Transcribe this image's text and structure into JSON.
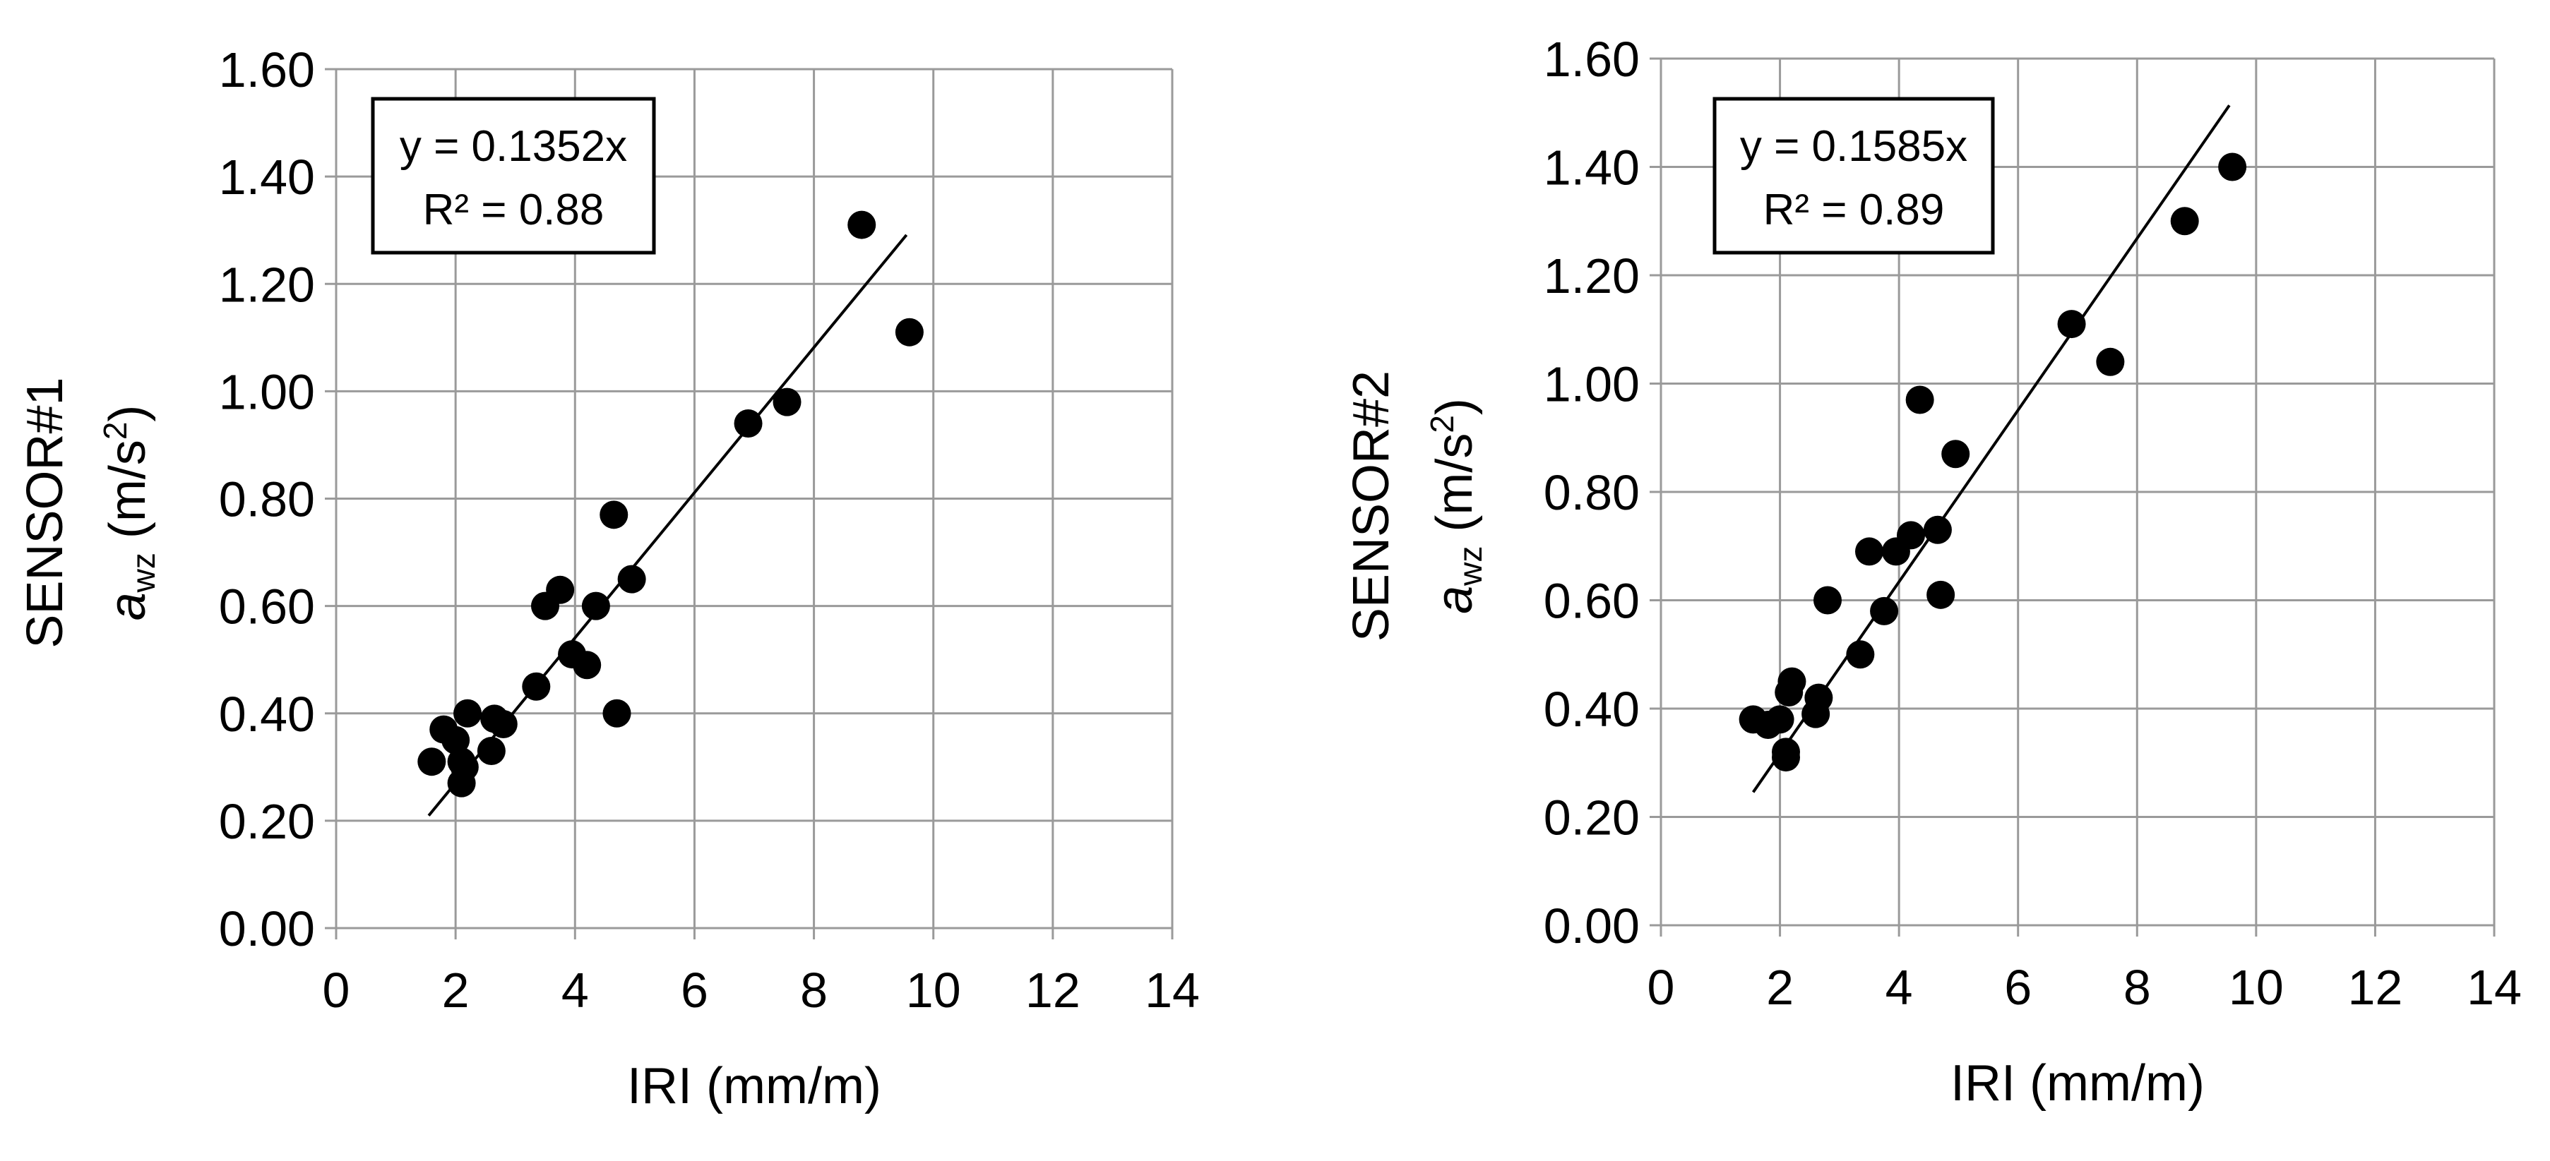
{
  "chart_data": [
    {
      "type": "scatter",
      "ylabel_line1": "SENSOR#1",
      "ylabel_var": "a",
      "ylabel_sub": "wz",
      "ylabel_unit_open": " (m/s",
      "ylabel_unit_sup": "2",
      "ylabel_unit_close": ")",
      "xlabel": "IRI (mm/m)",
      "xlim": [
        0,
        14
      ],
      "ylim": [
        0,
        1.6
      ],
      "xticks": [
        0,
        2,
        4,
        6,
        8,
        10,
        12,
        14
      ],
      "yticks": [
        0,
        0.2,
        0.4,
        0.6,
        0.8,
        1.0,
        1.2,
        1.4,
        1.6
      ],
      "ytick_labels": [
        "0.00",
        "0.20",
        "0.40",
        "0.60",
        "0.80",
        "1.00",
        "1.20",
        "1.40",
        "1.60"
      ],
      "grid": true,
      "equation": "y = 0.1352x",
      "r_squared": "R² = 0.88",
      "trendline": {
        "slope": 0.1352,
        "x_start": 1.55,
        "x_end": 9.55
      },
      "points": [
        [
          1.6,
          0.31
        ],
        [
          1.8,
          0.37
        ],
        [
          2.0,
          0.35
        ],
        [
          2.1,
          0.27
        ],
        [
          2.1,
          0.31
        ],
        [
          2.15,
          0.3
        ],
        [
          2.2,
          0.4
        ],
        [
          2.6,
          0.33
        ],
        [
          2.65,
          0.39
        ],
        [
          2.8,
          0.38
        ],
        [
          3.35,
          0.45
        ],
        [
          3.5,
          0.6
        ],
        [
          3.75,
          0.63
        ],
        [
          3.95,
          0.51
        ],
        [
          4.2,
          0.49
        ],
        [
          4.35,
          0.6
        ],
        [
          4.65,
          0.77
        ],
        [
          4.7,
          0.4
        ],
        [
          4.95,
          0.65
        ],
        [
          6.9,
          0.94
        ],
        [
          7.55,
          0.98
        ],
        [
          8.8,
          1.31
        ],
        [
          9.6,
          1.11
        ]
      ]
    },
    {
      "type": "scatter",
      "ylabel_line1": "SENSOR#2",
      "ylabel_var": "a",
      "ylabel_sub": "wz",
      "ylabel_unit_open": " (m/s",
      "ylabel_unit_sup": "2",
      "ylabel_unit_close": ")",
      "xlabel": "IRI (mm/m)",
      "xlim": [
        0,
        14
      ],
      "ylim": [
        0,
        1.6
      ],
      "xticks": [
        0,
        2,
        4,
        6,
        8,
        10,
        12,
        14
      ],
      "yticks": [
        0,
        0.2,
        0.4,
        0.6,
        0.8,
        1.0,
        1.2,
        1.4,
        1.6
      ],
      "ytick_labels": [
        "0.00",
        "0.20",
        "0.40",
        "0.60",
        "0.80",
        "1.00",
        "1.20",
        "1.40",
        "1.60"
      ],
      "grid": true,
      "equation": "y = 0.1585x",
      "r_squared": "R² = 0.89",
      "trendline": {
        "slope": 0.1585,
        "x_start": 1.55,
        "x_end": 9.55
      },
      "points": [
        [
          1.55,
          0.38
        ],
        [
          1.8,
          0.37
        ],
        [
          2.0,
          0.38
        ],
        [
          2.1,
          0.32
        ],
        [
          2.1,
          0.31
        ],
        [
          2.15,
          0.43
        ],
        [
          2.2,
          0.45
        ],
        [
          2.6,
          0.39
        ],
        [
          2.65,
          0.42
        ],
        [
          2.8,
          0.6
        ],
        [
          3.35,
          0.5
        ],
        [
          3.5,
          0.69
        ],
        [
          3.75,
          0.58
        ],
        [
          3.95,
          0.69
        ],
        [
          4.2,
          0.72
        ],
        [
          4.35,
          0.97
        ],
        [
          4.65,
          0.73
        ],
        [
          4.7,
          0.61
        ],
        [
          4.95,
          0.87
        ],
        [
          6.9,
          1.11
        ],
        [
          7.55,
          1.04
        ],
        [
          8.8,
          1.3
        ],
        [
          9.6,
          1.4
        ]
      ]
    }
  ]
}
